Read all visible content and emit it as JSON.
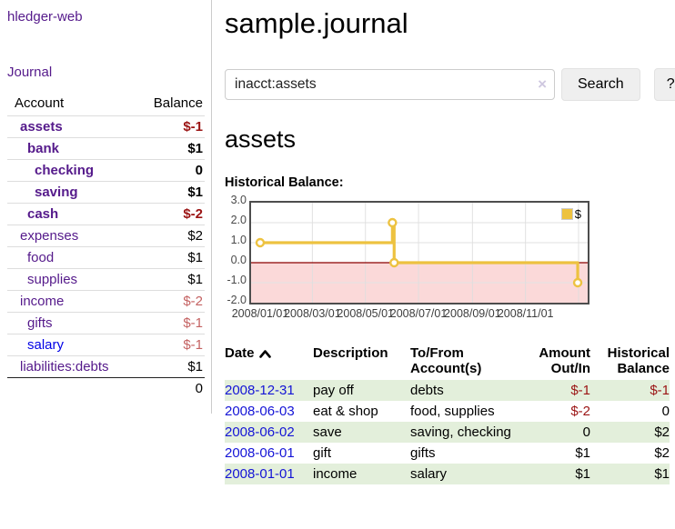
{
  "app": {
    "title": "hledger-web",
    "nav_journal": "Journal"
  },
  "sidebar": {
    "headers": {
      "account": "Account",
      "balance": "Balance"
    },
    "accounts": [
      {
        "name": "assets",
        "indent": 1,
        "bold": true,
        "balance": "$-1",
        "balance_class": "neg-strong"
      },
      {
        "name": "bank",
        "indent": 2,
        "bold": true,
        "balance": "$1",
        "balance_class": "strong"
      },
      {
        "name": "checking",
        "indent": 3,
        "bold": true,
        "balance": "0",
        "balance_class": "strong"
      },
      {
        "name": "saving",
        "indent": 3,
        "bold": true,
        "balance": "$1",
        "balance_class": "strong"
      },
      {
        "name": "cash",
        "indent": 2,
        "bold": true,
        "balance": "$-2",
        "balance_class": "neg-strong"
      },
      {
        "name": "expenses",
        "indent": 1,
        "bold": false,
        "balance": "$2",
        "balance_class": "normal"
      },
      {
        "name": "food",
        "indent": 2,
        "bold": false,
        "balance": "$1",
        "balance_class": "normal"
      },
      {
        "name": "supplies",
        "indent": 2,
        "bold": false,
        "balance": "$1",
        "balance_class": "normal"
      },
      {
        "name": "income",
        "indent": 1,
        "bold": false,
        "balance": "$-2",
        "balance_class": "neg-muted"
      },
      {
        "name": "gifts",
        "indent": 2,
        "bold": false,
        "balance": "$-1",
        "balance_class": "neg-muted"
      },
      {
        "name": "salary",
        "indent": 2,
        "bold": false,
        "link_color": "blue",
        "balance": "$-1",
        "balance_class": "neg-muted"
      },
      {
        "name": "liabilities:debts",
        "indent": 1,
        "bold": false,
        "balance": "$1",
        "balance_class": "normal"
      }
    ],
    "total": "0"
  },
  "header": {
    "title": "sample.journal"
  },
  "search": {
    "value": "inacct:assets",
    "clear_icon": "×",
    "button_label": "Search",
    "help_label": "?"
  },
  "account_page": {
    "heading": "assets",
    "chart_label": "Historical Balance:"
  },
  "chart_data": {
    "type": "line",
    "title": "Historical Balance",
    "step": true,
    "legend": [
      {
        "label": "$",
        "color": "#edc240"
      }
    ],
    "legend_position": "top-right",
    "grid": true,
    "ylim": [
      -2,
      3
    ],
    "y_ticks": [
      3.0,
      2.0,
      1.0,
      0.0,
      -1.0,
      -2.0
    ],
    "x_ticks": [
      {
        "label": "2008/01/01",
        "day": 0
      },
      {
        "label": "2008/03/01",
        "day": 60
      },
      {
        "label": "2008/05/01",
        "day": 121
      },
      {
        "label": "2008/07/01",
        "day": 182
      },
      {
        "label": "2008/09/01",
        "day": 244
      },
      {
        "label": "2008/11/01",
        "day": 305
      }
    ],
    "grid_days": [
      60,
      121,
      182,
      244,
      305,
      366
    ],
    "x_range_days": 366,
    "points": [
      {
        "date": "2008-01-01",
        "day": 0,
        "value": 1
      },
      {
        "date": "2008-06-01",
        "day": 152,
        "value": 2
      },
      {
        "date": "2008-06-03",
        "day": 154,
        "value": 0
      },
      {
        "date": "2008-12-31",
        "day": 365,
        "value": -1
      }
    ],
    "series_color": "#edc240",
    "negative_fill": "#fbd9d9",
    "zero_line_color": "#8b0000"
  },
  "register": {
    "headers": {
      "date": "Date",
      "description": "Description",
      "account": "To/From Account(s)",
      "amount": "Amount Out/In",
      "balance": "Historical Balance"
    },
    "rows": [
      {
        "date": "2008-12-31",
        "description": "pay off",
        "accounts": "debts",
        "amount": "$-1",
        "amount_class": "neg",
        "balance": "$-1",
        "balance_class": "neg",
        "shaded": true
      },
      {
        "date": "2008-06-03",
        "description": "eat & shop",
        "accounts": "food, supplies",
        "amount": "$-2",
        "amount_class": "neg",
        "balance": "0",
        "balance_class": "",
        "shaded": false
      },
      {
        "date": "2008-06-02",
        "description": "save",
        "accounts": "saving, checking",
        "amount": "0",
        "amount_class": "",
        "balance": "$2",
        "balance_class": "",
        "shaded": true
      },
      {
        "date": "2008-06-01",
        "description": "gift",
        "accounts": "gifts",
        "amount": "$1",
        "amount_class": "",
        "balance": "$2",
        "balance_class": "",
        "shaded": false
      },
      {
        "date": "2008-01-01",
        "description": "income",
        "accounts": "salary",
        "amount": "$1",
        "amount_class": "",
        "balance": "$1",
        "balance_class": "",
        "shaded": true
      }
    ]
  }
}
